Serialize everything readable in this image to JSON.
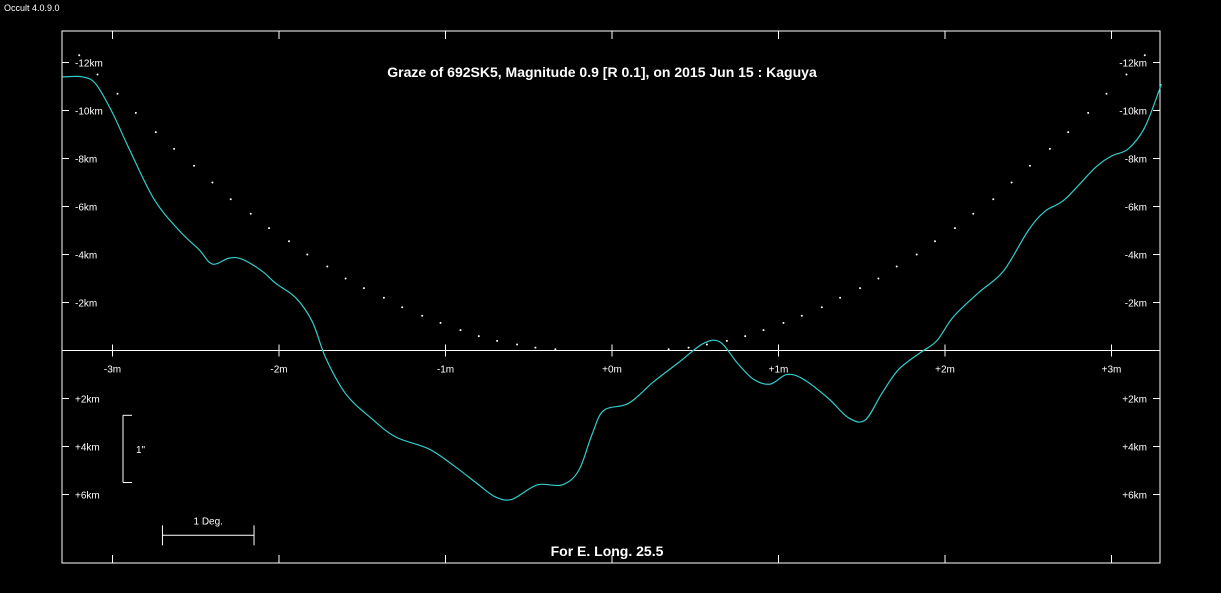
{
  "app": {
    "version_label": "Occult 4.0.9.0"
  },
  "colors": {
    "background": "#000000",
    "frame": "#ffffff",
    "profile": "#33cccc",
    "star_path": "#ffffff"
  },
  "chart_data": {
    "type": "line",
    "title": "Graze of  692SK5,  Magnitude 0.9 [R 0.1],  on 2015 Jun 15  :  Kaguya",
    "footer": "For E. Long. 25.5",
    "x_unit": "minutes of time",
    "y_unit": "km",
    "xlim": [
      -3.3,
      3.3
    ],
    "ylim": [
      -12.4,
      8.9
    ],
    "x_ticks": [
      {
        "value": -3,
        "label": "-3m"
      },
      {
        "value": -2,
        "label": "-2m"
      },
      {
        "value": -1,
        "label": "-1m"
      },
      {
        "value": 0,
        "label": "+0m"
      },
      {
        "value": 1,
        "label": "+1m"
      },
      {
        "value": 2,
        "label": "+2m"
      },
      {
        "value": 3,
        "label": "+3m"
      }
    ],
    "y_ticks": [
      {
        "value": -12,
        "label": "-12km"
      },
      {
        "value": -10,
        "label": "-10km"
      },
      {
        "value": -8,
        "label": "-8km"
      },
      {
        "value": -6,
        "label": "-6km"
      },
      {
        "value": -4,
        "label": "-4km"
      },
      {
        "value": -2,
        "label": "-2km"
      },
      {
        "value": 2,
        "label": "+2km"
      },
      {
        "value": 4,
        "label": "+4km"
      },
      {
        "value": 6,
        "label": "+6km"
      }
    ],
    "scale_bar_vertical": {
      "label": "1\"",
      "y_from": 2.7,
      "y_to": 5.5
    },
    "scale_bar_horizontal": {
      "label": "1 Deg.",
      "x_from": -2.7,
      "x_to": -2.15,
      "y": 7.7
    },
    "series": [
      {
        "role": "lunar-limb-profile",
        "points": [
          [
            -3.3,
            -11.4
          ],
          [
            -3.18,
            -11.4
          ],
          [
            -3.1,
            -11.1
          ],
          [
            -3.0,
            -9.9
          ],
          [
            -2.9,
            -8.4
          ],
          [
            -2.75,
            -6.3
          ],
          [
            -2.6,
            -5.0
          ],
          [
            -2.48,
            -4.2
          ],
          [
            -2.4,
            -3.6
          ],
          [
            -2.3,
            -3.85
          ],
          [
            -2.22,
            -3.8
          ],
          [
            -2.1,
            -3.3
          ],
          [
            -2.02,
            -2.8
          ],
          [
            -1.9,
            -2.2
          ],
          [
            -1.8,
            -1.2
          ],
          [
            -1.72,
            0.3
          ],
          [
            -1.6,
            1.8
          ],
          [
            -1.45,
            2.8
          ],
          [
            -1.3,
            3.6
          ],
          [
            -1.1,
            4.1
          ],
          [
            -0.95,
            4.8
          ],
          [
            -0.8,
            5.6
          ],
          [
            -0.7,
            6.1
          ],
          [
            -0.6,
            6.2
          ],
          [
            -0.45,
            5.6
          ],
          [
            -0.3,
            5.6
          ],
          [
            -0.2,
            5.0
          ],
          [
            -0.12,
            3.5
          ],
          [
            -0.05,
            2.5
          ],
          [
            0.1,
            2.2
          ],
          [
            0.25,
            1.3
          ],
          [
            0.4,
            0.5
          ],
          [
            0.55,
            -0.3
          ],
          [
            0.65,
            -0.35
          ],
          [
            0.75,
            0.5
          ],
          [
            0.85,
            1.2
          ],
          [
            0.95,
            1.4
          ],
          [
            1.05,
            1.0
          ],
          [
            1.15,
            1.2
          ],
          [
            1.3,
            2.0
          ],
          [
            1.42,
            2.8
          ],
          [
            1.52,
            2.9
          ],
          [
            1.62,
            1.8
          ],
          [
            1.72,
            0.8
          ],
          [
            1.85,
            0.1
          ],
          [
            1.95,
            -0.4
          ],
          [
            2.05,
            -1.4
          ],
          [
            2.2,
            -2.4
          ],
          [
            2.35,
            -3.3
          ],
          [
            2.5,
            -5.0
          ],
          [
            2.6,
            -5.8
          ],
          [
            2.72,
            -6.3
          ],
          [
            2.9,
            -7.6
          ],
          [
            3.0,
            -8.1
          ],
          [
            3.1,
            -8.4
          ],
          [
            3.2,
            -9.3
          ],
          [
            3.3,
            -11.1
          ]
        ]
      },
      {
        "role": "star-path",
        "style": "dotted",
        "points": [
          [
            -3.2,
            -12.3
          ],
          [
            -3.09,
            -11.5
          ],
          [
            -2.97,
            -10.7
          ],
          [
            -2.86,
            -9.9
          ],
          [
            -2.74,
            -9.1
          ],
          [
            -2.63,
            -8.4
          ],
          [
            -2.51,
            -7.7
          ],
          [
            -2.4,
            -7.0
          ],
          [
            -2.29,
            -6.3
          ],
          [
            -2.17,
            -5.7
          ],
          [
            -2.06,
            -5.1
          ],
          [
            -1.94,
            -4.55
          ],
          [
            -1.83,
            -4.0
          ],
          [
            -1.71,
            -3.5
          ],
          [
            -1.6,
            -3.0
          ],
          [
            -1.49,
            -2.6
          ],
          [
            -1.37,
            -2.2
          ],
          [
            -1.26,
            -1.8
          ],
          [
            -1.14,
            -1.45
          ],
          [
            -1.03,
            -1.15
          ],
          [
            -0.91,
            -0.85
          ],
          [
            -0.8,
            -0.6
          ],
          [
            -0.69,
            -0.4
          ],
          [
            -0.57,
            -0.25
          ],
          [
            -0.46,
            -0.12
          ],
          [
            -0.34,
            -0.05
          ],
          [
            0.34,
            -0.05
          ],
          [
            0.46,
            -0.12
          ],
          [
            0.57,
            -0.25
          ],
          [
            0.69,
            -0.4
          ],
          [
            0.8,
            -0.6
          ],
          [
            0.91,
            -0.85
          ],
          [
            1.03,
            -1.15
          ],
          [
            1.14,
            -1.45
          ],
          [
            1.26,
            -1.8
          ],
          [
            1.37,
            -2.2
          ],
          [
            1.49,
            -2.6
          ],
          [
            1.6,
            -3.0
          ],
          [
            1.71,
            -3.5
          ],
          [
            1.83,
            -4.0
          ],
          [
            1.94,
            -4.55
          ],
          [
            2.06,
            -5.1
          ],
          [
            2.17,
            -5.7
          ],
          [
            2.29,
            -6.3
          ],
          [
            2.4,
            -7.0
          ],
          [
            2.51,
            -7.7
          ],
          [
            2.63,
            -8.4
          ],
          [
            2.74,
            -9.1
          ],
          [
            2.86,
            -9.9
          ],
          [
            2.97,
            -10.7
          ],
          [
            3.09,
            -11.5
          ],
          [
            3.2,
            -12.3
          ]
        ]
      }
    ]
  }
}
